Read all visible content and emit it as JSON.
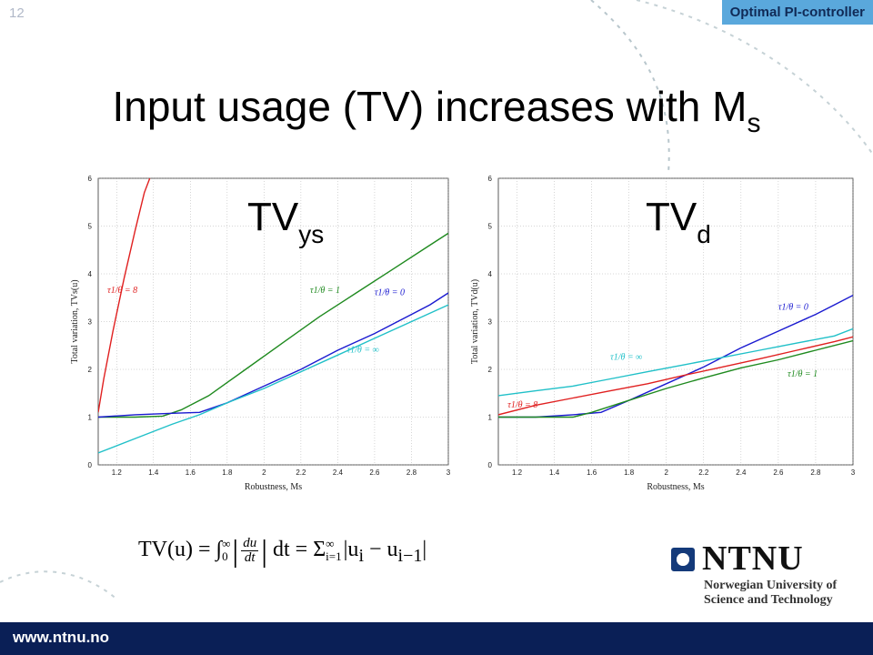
{
  "slide": {
    "number": "12",
    "section_tag": "Optimal PI-controller",
    "title_main": "Input usage (TV) increases with M",
    "title_sub": "s",
    "formula": {
      "lhs": "TV(u) = ∫",
      "int_upper": "∞",
      "int_lower": "0",
      "num": "du",
      "den": "dt",
      "mid": "dt = Σ",
      "sum_upper": "∞",
      "sum_lower": "i=1",
      "rhs": "|u",
      "rhs_i": "i",
      "minus": " − u",
      "rhs_i1": "i−1",
      "end": "|"
    },
    "logo": {
      "name": "NTNU",
      "line1": "Norwegian University of",
      "line2": "Science and Technology"
    },
    "footer_url": "www.ntnu.no",
    "colors": {
      "footer": "#0a1f56",
      "tag": "#5aa8dc",
      "red": "#e02020",
      "green": "#1f8a1f",
      "blue": "#1a1ad0",
      "cyan": "#20c0c8"
    }
  },
  "chart_data": [
    {
      "type": "line",
      "label_main": "TV",
      "label_sub": "ys",
      "xlabel": "Robustness, Ms",
      "ylabel": "Total variation, TVs(u)",
      "xlim": [
        1.1,
        3.0
      ],
      "ylim": [
        0,
        6
      ],
      "xticks": [
        "1.2",
        "1.4",
        "1.6",
        "1.8",
        "2",
        "2.2",
        "2.4",
        "2.6",
        "2.8",
        "3"
      ],
      "yticks": [
        "0",
        "1",
        "2",
        "3",
        "4",
        "5",
        "6"
      ],
      "grid": true,
      "series": [
        {
          "name": "τ1/θ = 8",
          "color": "#e02020",
          "x": [
            1.1,
            1.13,
            1.18,
            1.24,
            1.3,
            1.35,
            1.38
          ],
          "y": [
            1.1,
            1.8,
            2.8,
            3.9,
            4.9,
            5.7,
            6.0
          ],
          "annot": {
            "text": "τ1/θ = 8",
            "x": 1.15,
            "y": 3.6
          }
        },
        {
          "name": "τ1/θ = 1",
          "color": "#1f8a1f",
          "x": [
            1.1,
            1.3,
            1.45,
            1.55,
            1.7,
            1.9,
            2.1,
            2.3,
            2.5,
            2.7,
            2.9,
            3.0
          ],
          "y": [
            1.0,
            1.0,
            1.02,
            1.15,
            1.45,
            2.0,
            2.55,
            3.1,
            3.6,
            4.1,
            4.6,
            4.85
          ],
          "annot": {
            "text": "τ1/θ = 1",
            "x": 2.25,
            "y": 3.6
          }
        },
        {
          "name": "τ1/θ = 0",
          "color": "#1a1ad0",
          "x": [
            1.1,
            1.3,
            1.5,
            1.65,
            1.8,
            2.0,
            2.2,
            2.4,
            2.6,
            2.8,
            2.9,
            3.0
          ],
          "y": [
            1.0,
            1.05,
            1.08,
            1.1,
            1.3,
            1.65,
            2.0,
            2.4,
            2.75,
            3.15,
            3.35,
            3.6
          ],
          "annot": {
            "text": "τ1/θ = 0",
            "x": 2.6,
            "y": 3.55
          }
        },
        {
          "name": "τ1/θ = ∞",
          "color": "#20c0c8",
          "x": [
            1.1,
            1.3,
            1.5,
            1.65,
            1.8,
            2.0,
            2.2,
            2.4,
            2.6,
            2.8,
            3.0
          ],
          "y": [
            0.25,
            0.55,
            0.85,
            1.05,
            1.3,
            1.6,
            1.95,
            2.3,
            2.65,
            3.0,
            3.35
          ],
          "annot": {
            "text": "τ1/θ = ∞",
            "x": 2.45,
            "y": 2.35
          }
        }
      ]
    },
    {
      "type": "line",
      "label_main": "TV",
      "label_sub": "d",
      "xlabel": "Robustness, Ms",
      "ylabel": "Total variation, TVd(u)",
      "xlim": [
        1.1,
        3.0
      ],
      "ylim": [
        0,
        6
      ],
      "xticks": [
        "1.2",
        "1.4",
        "1.6",
        "1.8",
        "2",
        "2.2",
        "2.4",
        "2.6",
        "2.8",
        "3"
      ],
      "yticks": [
        "0",
        "1",
        "2",
        "3",
        "4",
        "5",
        "6"
      ],
      "grid": true,
      "series": [
        {
          "name": "τ1/θ = 0",
          "color": "#1a1ad0",
          "x": [
            1.1,
            1.3,
            1.5,
            1.65,
            1.8,
            2.0,
            2.2,
            2.4,
            2.6,
            2.8,
            2.9,
            3.0
          ],
          "y": [
            1.0,
            1.0,
            1.05,
            1.1,
            1.35,
            1.7,
            2.05,
            2.45,
            2.8,
            3.15,
            3.35,
            3.55
          ],
          "annot": {
            "text": "τ1/θ = 0",
            "x": 2.6,
            "y": 3.25
          }
        },
        {
          "name": "τ1/θ = ∞",
          "color": "#20c0c8",
          "x": [
            1.1,
            1.3,
            1.5,
            1.7,
            1.9,
            2.1,
            2.3,
            2.5,
            2.7,
            2.9,
            3.0
          ],
          "y": [
            1.45,
            1.55,
            1.65,
            1.8,
            1.95,
            2.1,
            2.25,
            2.4,
            2.55,
            2.7,
            2.85
          ],
          "annot": {
            "text": "τ1/θ = ∞",
            "x": 1.7,
            "y": 2.2
          }
        },
        {
          "name": "τ1/θ = 8",
          "color": "#e02020",
          "x": [
            1.1,
            1.3,
            1.5,
            1.7,
            1.9,
            2.1,
            2.3,
            2.5,
            2.7,
            2.9,
            3.0
          ],
          "y": [
            1.05,
            1.25,
            1.4,
            1.55,
            1.7,
            1.88,
            2.05,
            2.22,
            2.4,
            2.58,
            2.68
          ],
          "annot": {
            "text": "τ1/θ = 8",
            "x": 1.15,
            "y": 1.2
          }
        },
        {
          "name": "τ1/θ = 1",
          "color": "#1f8a1f",
          "x": [
            1.1,
            1.3,
            1.5,
            1.6,
            1.8,
            2.0,
            2.2,
            2.4,
            2.6,
            2.8,
            3.0
          ],
          "y": [
            1.0,
            1.0,
            1.0,
            1.1,
            1.35,
            1.6,
            1.82,
            2.03,
            2.2,
            2.4,
            2.6
          ],
          "annot": {
            "text": "τ1/θ = 1",
            "x": 2.65,
            "y": 1.85
          }
        }
      ]
    }
  ]
}
